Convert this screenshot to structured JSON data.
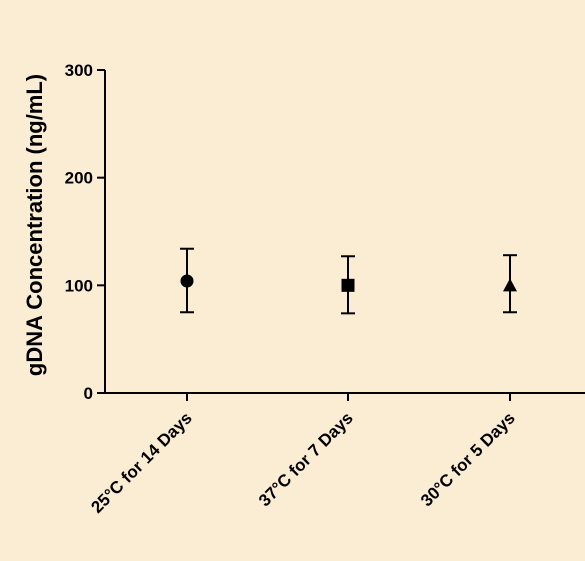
{
  "chart_data": {
    "type": "scatter",
    "title": "",
    "xlabel": "",
    "ylabel": "gDNA Concentration (ng/mL)",
    "ylim": [
      0,
      300
    ],
    "yticks": [
      0,
      100,
      200,
      300
    ],
    "grid": false,
    "categories": [
      "25°C for 14 Days",
      "37°C for 7 Days",
      "30°C for 5 Days"
    ],
    "values": [
      104,
      100,
      100
    ],
    "error_low": [
      75,
      74,
      75
    ],
    "error_high": [
      134,
      127,
      128
    ],
    "markers": [
      "circle",
      "square",
      "triangle"
    ]
  }
}
